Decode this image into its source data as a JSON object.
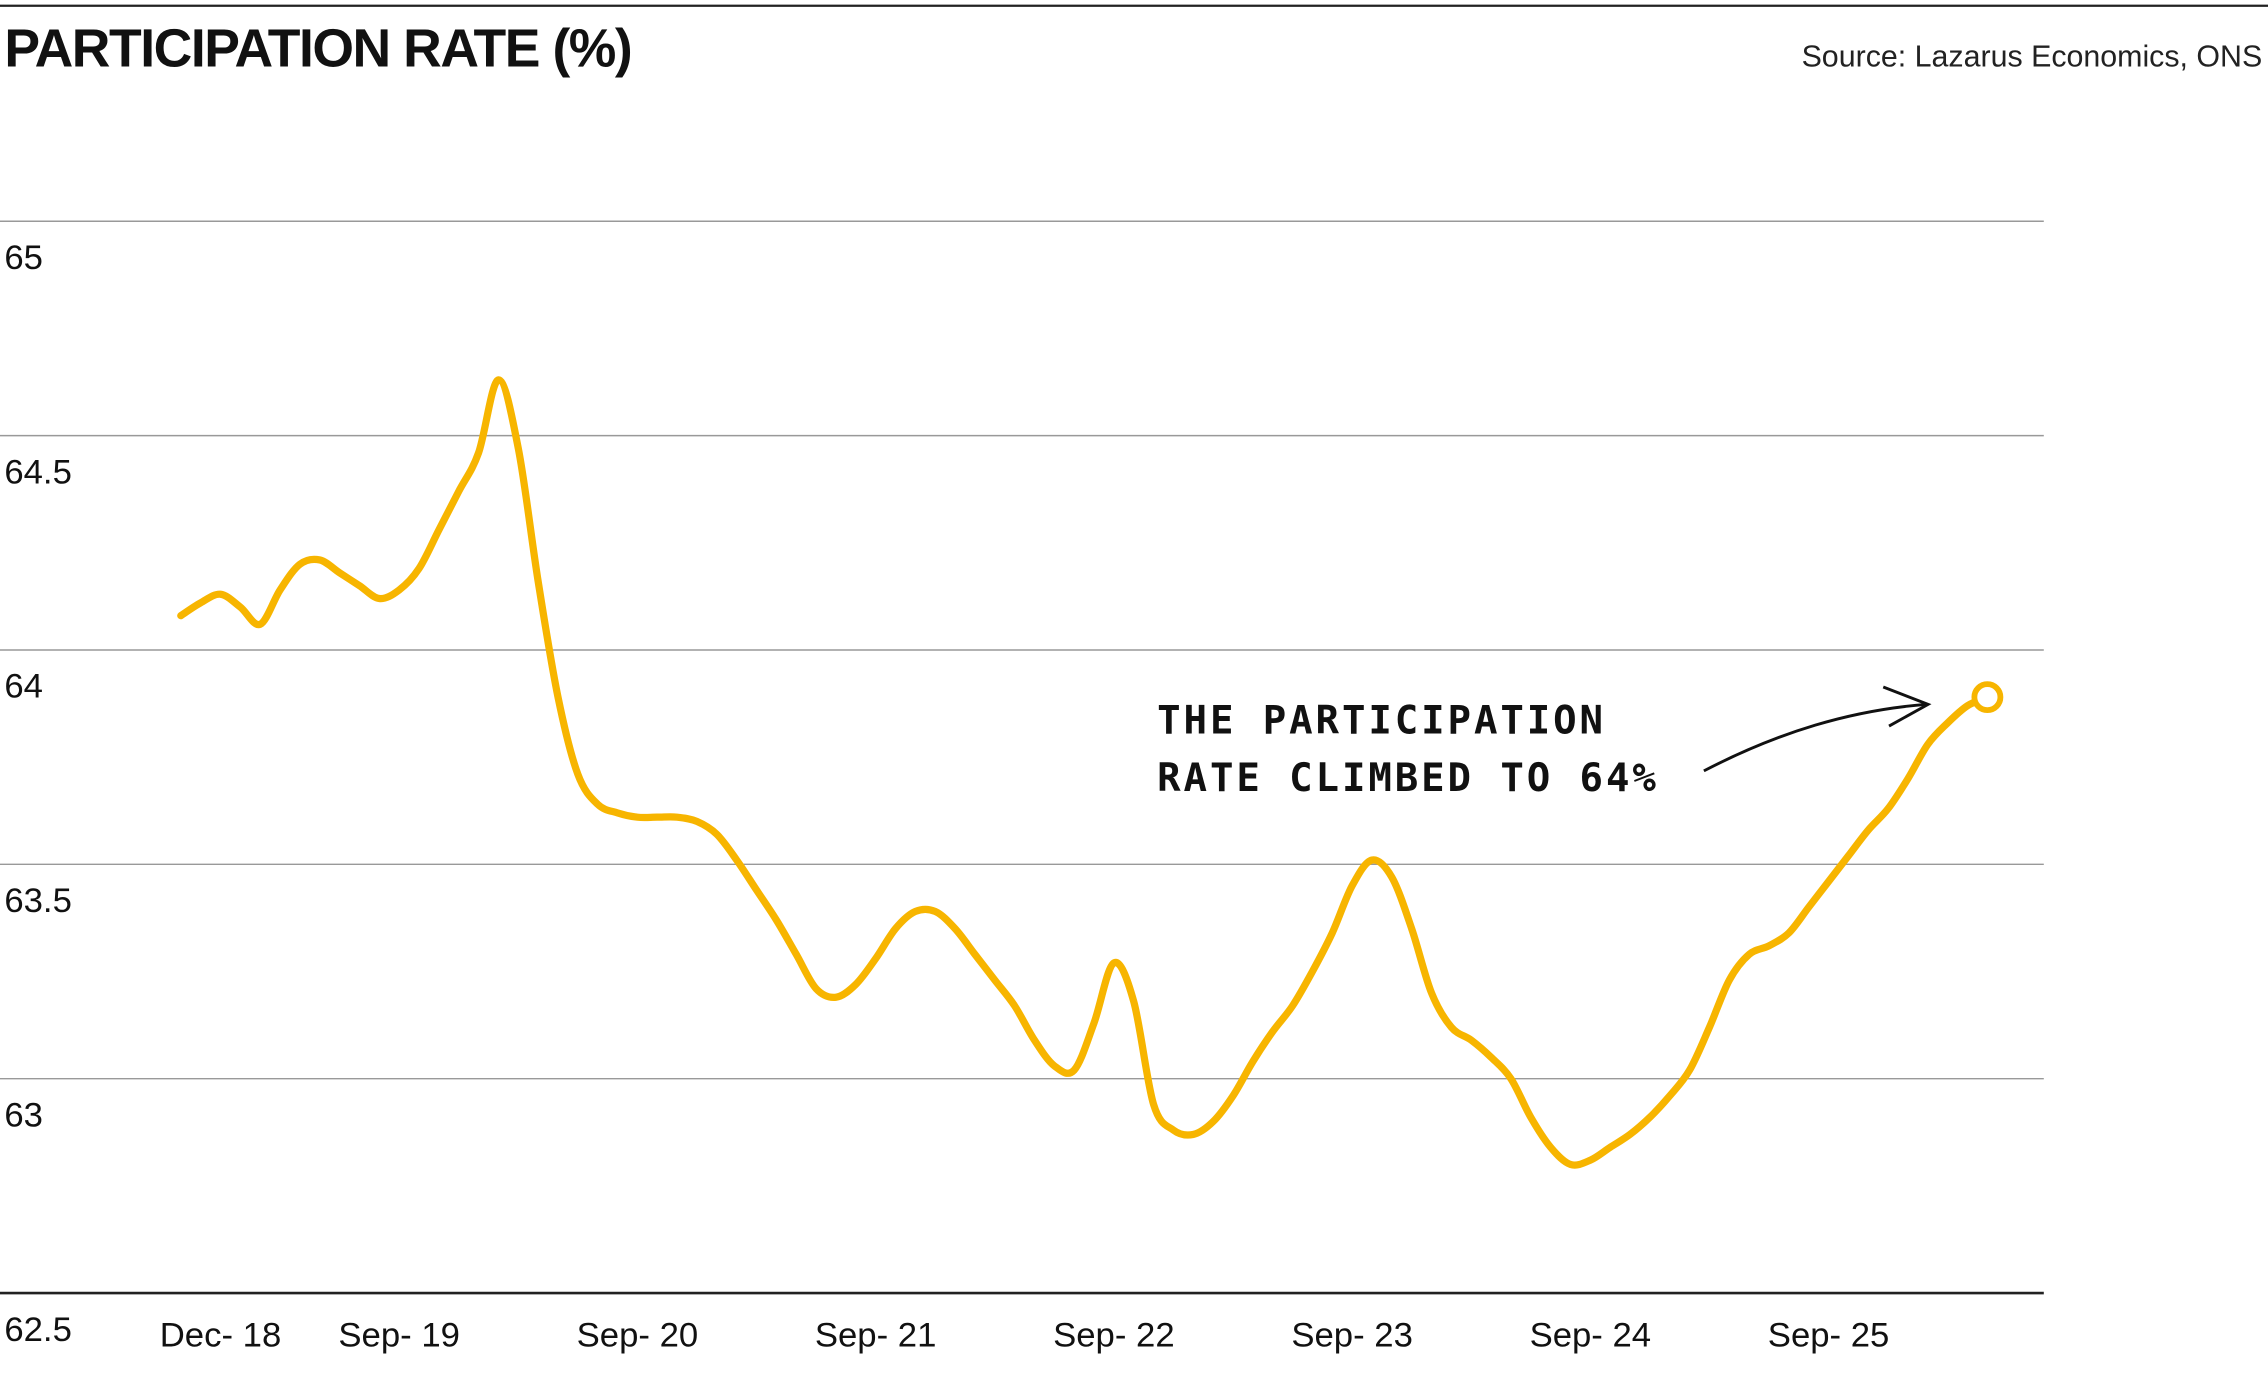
{
  "chart_data": {
    "type": "line",
    "title": "PARTICIPATION RATE (%)",
    "source": "Source: Lazarus Economics, ONS",
    "annotation": [
      "THE PARTICIPATION",
      "RATE CLIMBED TO 64%"
    ],
    "categories": [
      null,
      null,
      "Dec- 18",
      null,
      null,
      null,
      null,
      null,
      null,
      null,
      null,
      "Sep- 19",
      null,
      null,
      null,
      null,
      null,
      null,
      null,
      null,
      null,
      null,
      null,
      "Sep- 20",
      null,
      null,
      null,
      null,
      null,
      null,
      null,
      null,
      null,
      null,
      null,
      "Sep- 21",
      null,
      null,
      null,
      null,
      null,
      null,
      null,
      null,
      null,
      null,
      null,
      "Sep- 22",
      null,
      null,
      null,
      null,
      null,
      null,
      null,
      null,
      null,
      null,
      null,
      "Sep- 23",
      null,
      null,
      null,
      null,
      null,
      null,
      null,
      null,
      null,
      null,
      null,
      "Sep- 24",
      null,
      null,
      null,
      null,
      null,
      null,
      null,
      null,
      null,
      null,
      null,
      "Sep- 25",
      null,
      null,
      null,
      null,
      null,
      null,
      null,
      null
    ],
    "series": [
      {
        "name": "Participation rate",
        "color": "#f7b500",
        "values": [
          64.08,
          64.11,
          64.13,
          64.1,
          64.06,
          64.14,
          64.2,
          64.21,
          64.18,
          64.15,
          64.12,
          64.14,
          64.19,
          64.28,
          64.37,
          64.46,
          64.63,
          64.47,
          64.16,
          63.89,
          63.71,
          63.64,
          63.62,
          63.61,
          63.61,
          63.61,
          63.6,
          63.57,
          63.51,
          63.44,
          63.37,
          63.29,
          63.21,
          63.19,
          63.22,
          63.28,
          63.35,
          63.39,
          63.39,
          63.35,
          63.29,
          63.23,
          63.17,
          63.09,
          63.03,
          63.02,
          63.13,
          63.27,
          63.18,
          62.94,
          62.88,
          62.87,
          62.9,
          62.96,
          63.04,
          63.11,
          63.17,
          63.25,
          63.34,
          63.45,
          63.51,
          63.47,
          63.35,
          63.2,
          63.12,
          63.09,
          63.05,
          63.0,
          62.91,
          62.84,
          62.8,
          62.81,
          62.84,
          62.87,
          62.91,
          62.96,
          63.02,
          63.12,
          63.23,
          63.29,
          63.31,
          63.34,
          63.4,
          63.46,
          63.52,
          63.58,
          63.63,
          63.7,
          63.78,
          63.83,
          63.87,
          63.89
        ]
      }
    ],
    "ylim": [
      62.5,
      65
    ],
    "yticks": [
      62.5,
      63,
      63.5,
      64,
      64.5,
      65
    ],
    "grid": true
  }
}
